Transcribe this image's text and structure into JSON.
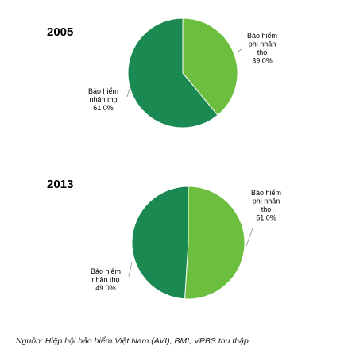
{
  "colors": {
    "non_life": "#6cbf3e",
    "life": "#1a8a52",
    "leader": "#8a8a8a"
  },
  "chart_data": [
    {
      "type": "pie",
      "title": "2005",
      "slices": [
        {
          "label": [
            "Bảo hiểm",
            "phi nhân",
            "thọ",
            "39.0%"
          ],
          "name": "Bảo hiểm phi nhân thọ",
          "value": 39.0,
          "color": "#6cbf3e"
        },
        {
          "label": [
            "Bảo hiểm",
            "nhân thọ",
            "61.0%"
          ],
          "name": "Bảo hiểm nhân thọ",
          "value": 61.0,
          "color": "#1a8a52"
        }
      ]
    },
    {
      "type": "pie",
      "title": "2013",
      "slices": [
        {
          "label": [
            "Bảo hiểm",
            "phi nhân",
            "thọ",
            "51.0%"
          ],
          "name": "Bảo hiểm phi nhân thọ",
          "value": 51.0,
          "color": "#6cbf3e"
        },
        {
          "label": [
            "Bảo hiểm",
            "nhân thọ",
            "49.0%"
          ],
          "name": "Bảo hiểm nhân thọ",
          "value": 49.0,
          "color": "#1a8a52"
        }
      ]
    }
  ],
  "source_note": "Nguồn: Hiệp hội bảo hiểm Việt Nam (AVI), BMI, VPBS thu thập"
}
